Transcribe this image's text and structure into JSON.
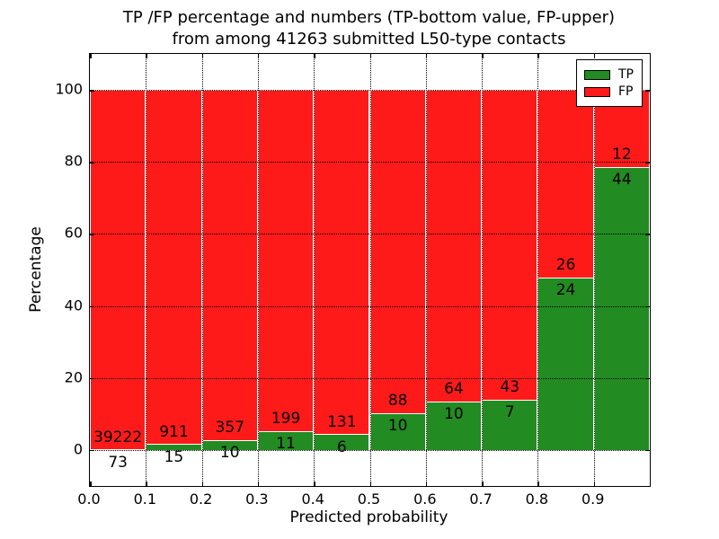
{
  "title": {
    "line1": "TP /FP percentage and numbers (TP-bottom value, FP-upper)",
    "line2": "from among 41263 submitted L50-type contacts"
  },
  "axes": {
    "xlabel": "Predicted probability",
    "ylabel": "Percentage"
  },
  "legend": {
    "position": "upper right",
    "entries": [
      {
        "label": "TP",
        "color": "#228b22"
      },
      {
        "label": "FP",
        "color": "#ff1a1a"
      }
    ]
  },
  "chart_data": {
    "type": "bar",
    "stacked": true,
    "normalized_to_percent": true,
    "title": "TP /FP percentage and numbers (TP-bottom value, FP-upper) from among 41263 submitted L50-type contacts",
    "total_submitted_contacts": 41263,
    "xlabel": "Predicted probability",
    "ylabel": "Percentage",
    "categories": [
      "0.0-0.1",
      "0.1-0.2",
      "0.2-0.3",
      "0.3-0.4",
      "0.4-0.5",
      "0.5-0.6",
      "0.6-0.7",
      "0.7-0.8",
      "0.8-0.9",
      "0.9-1.0"
    ],
    "bin_width": 0.1,
    "series": [
      {
        "name": "TP",
        "color": "#228b22",
        "counts": [
          73,
          15,
          10,
          11,
          6,
          10,
          10,
          7,
          24,
          44
        ]
      },
      {
        "name": "FP",
        "color": "#ff1a1a",
        "counts": [
          39222,
          911,
          357,
          199,
          131,
          88,
          64,
          43,
          26,
          12
        ]
      }
    ],
    "label_rule": "TP count printed below the green/red boundary, FP count printed above it",
    "x_ticks": [
      "0.0",
      "0.1",
      "0.2",
      "0.3",
      "0.4",
      "0.5",
      "0.6",
      "0.7",
      "0.8",
      "0.9"
    ],
    "y_ticks": [
      0,
      20,
      40,
      60,
      80,
      100
    ],
    "xlim": [
      0.0,
      1.0
    ],
    "ylim": [
      -10,
      110
    ],
    "grid": "black dotted at major ticks",
    "bar_edge_color": "#ffffff",
    "legend_position": "upper right"
  }
}
